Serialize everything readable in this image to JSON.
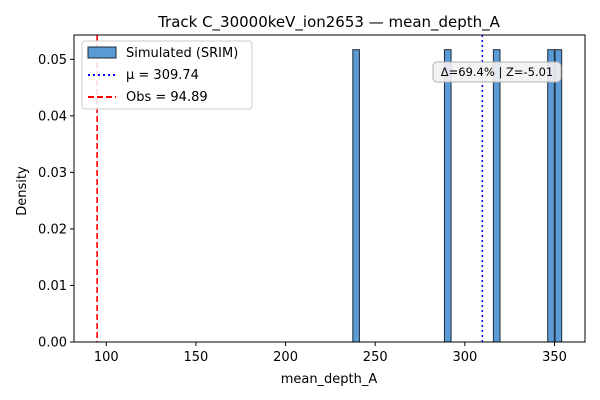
{
  "chart_data": {
    "type": "histogram",
    "title": "Track C_30000keV_ion2653 — mean_depth_A",
    "xlabel": "mean_depth_A",
    "ylabel": "Density",
    "xlim": [
      82,
      367
    ],
    "ylim": [
      0,
      0.0543
    ],
    "xticks": [
      100,
      150,
      200,
      250,
      300,
      350
    ],
    "yticks": [
      0.0,
      0.01,
      0.02,
      0.03,
      0.04,
      0.05
    ],
    "ytick_format": 2,
    "bin_width": 3.7,
    "bars": [
      {
        "x_start": 237.5,
        "value": 0.0517
      },
      {
        "x_start": 288.6,
        "value": 0.0517
      },
      {
        "x_start": 315.9,
        "value": 0.0517
      },
      {
        "x_start": 346.2,
        "value": 0.0517
      },
      {
        "x_start": 350.3,
        "value": 0.0517
      }
    ],
    "series_label": "Simulated (SRIM)",
    "bar_color": "#5b9bd5",
    "bar_edge_color": "#1f2a36",
    "mean_line": {
      "label": "μ = 309.74",
      "x": 309.74,
      "color": "#0000ff"
    },
    "obs_line": {
      "label": "Obs = 94.89",
      "x": 94.89,
      "color": "#ff0000"
    },
    "annotation": "Δ=69.4% | Z=-5.01",
    "legend_position": "upper-left",
    "grid": false
  }
}
